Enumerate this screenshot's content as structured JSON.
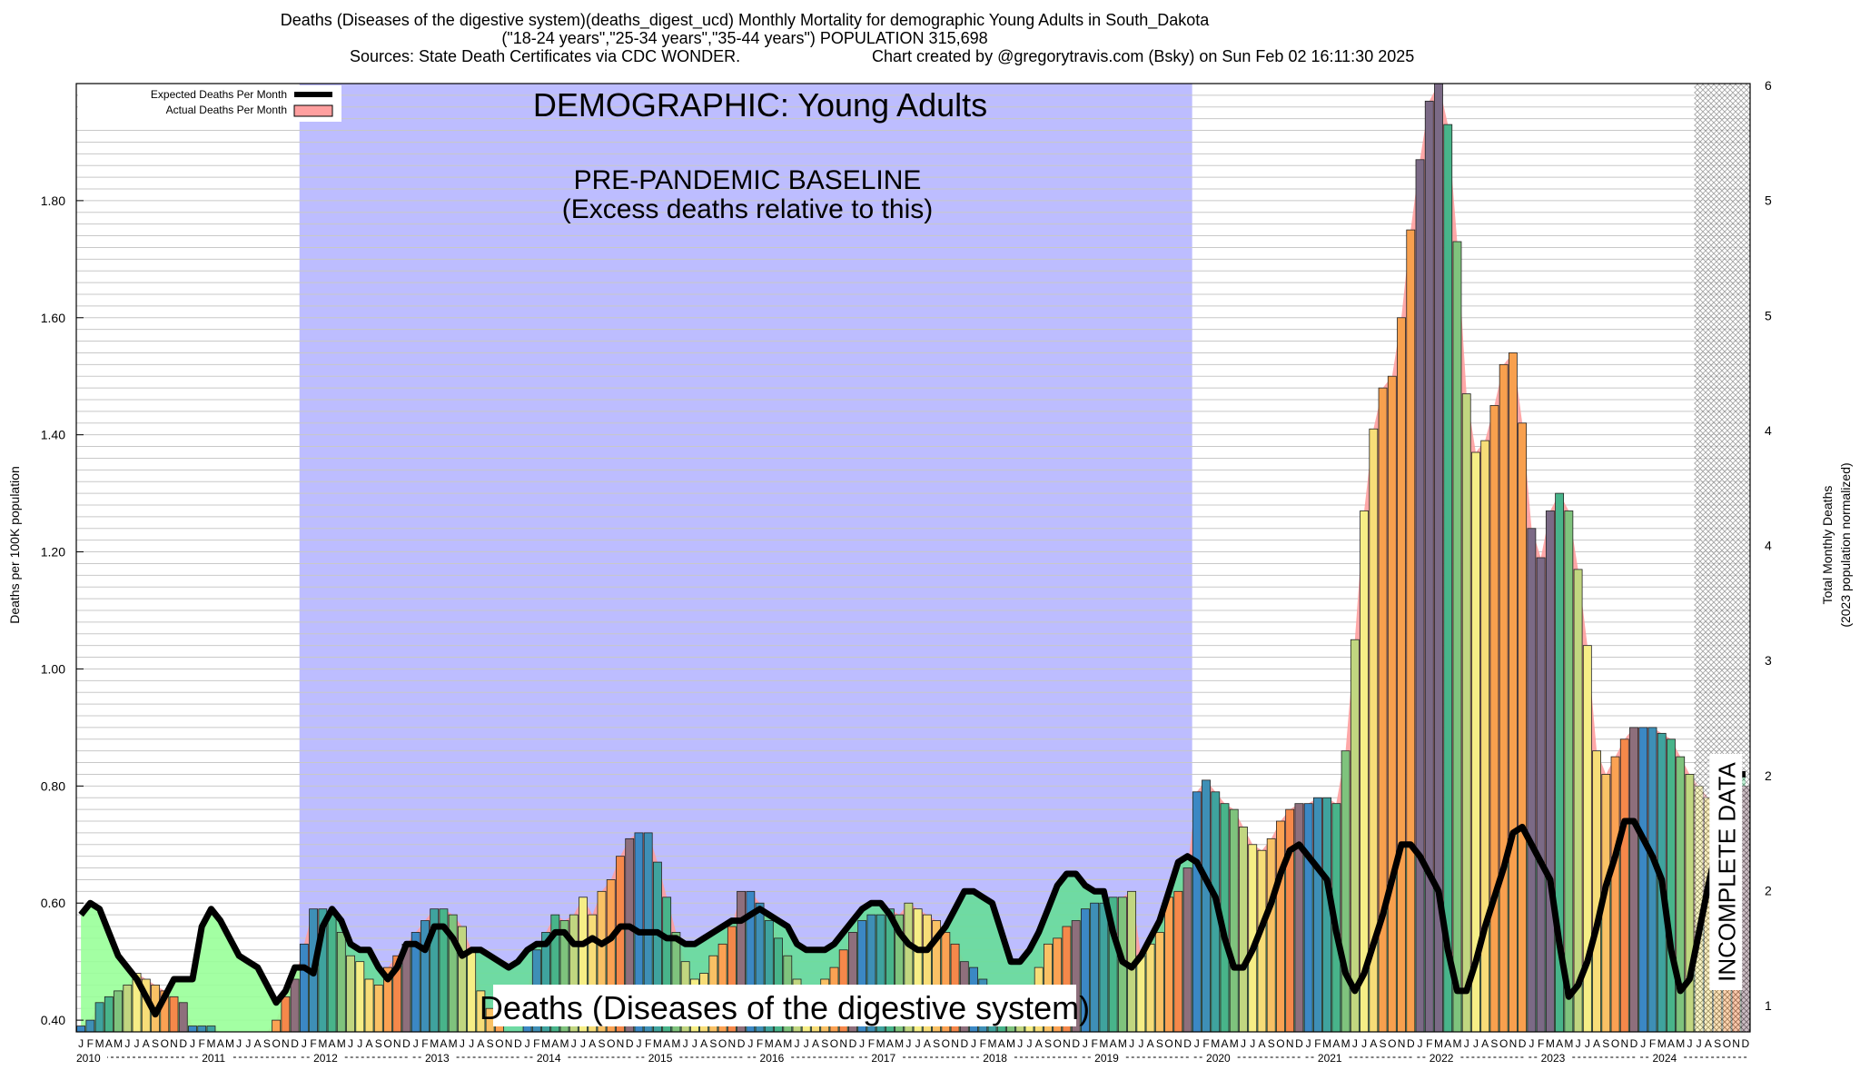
{
  "header": {
    "line1": "Deaths (Diseases of the digestive system)(deaths_digest_ucd) Monthly Mortality for demographic Young Adults in South_Dakota",
    "line2": "(\"18-24 years\",\"25-34 years\",\"35-44 years\") POPULATION 315,698",
    "line3": "Sources: State Death Certificates via CDC WONDER.",
    "line4": "Chart created by @gregorytravis.com (Bsky) on Sun Feb 02 16:11:30 2025"
  },
  "colors": {
    "baseline_band": "#bdbdff",
    "expected_fill": "#99ff99",
    "expected_fill_baseline": "#66dd99",
    "actual_fill": "#ff9f9f",
    "expected_line": "#000000",
    "bar_palette": [
      "#3b88c4",
      "#3e8fb6",
      "#3fa39e",
      "#48b48a",
      "#7fc37d",
      "#c1d680",
      "#f6ee86",
      "#f7dd78",
      "#f9c165",
      "#fba253",
      "#f5884a",
      "#8e6f7c"
    ]
  },
  "chart_data": {
    "type": "bar",
    "title": "Deaths (Diseases of the digestive system)(deaths_digest_ucd) Monthly Mortality for demographic Young Adults in South_Dakota",
    "ylabel": "Deaths per 100K population",
    "y2label": "Total Monthly Deaths",
    "y2label_note": "(2023 population normalized)",
    "ylim": [
      0.38,
      2.0
    ],
    "yticks": [
      "0.40",
      "0.60",
      "0.80",
      "1.00",
      "1.20",
      "1.40",
      "1.60",
      "1.80"
    ],
    "y2ticks": [
      "1",
      "2",
      "2",
      "3",
      "4",
      "4",
      "5",
      "5",
      "6"
    ],
    "grid": true,
    "x_start": "2010-01",
    "month_letters": [
      "J",
      "F",
      "M",
      "A",
      "M",
      "J",
      "J",
      "A",
      "S",
      "O",
      "N",
      "D"
    ],
    "years": [
      "2010",
      "2011",
      "2012",
      "2013",
      "2014",
      "2015",
      "2016",
      "2017",
      "2018",
      "2019",
      "2020",
      "2021",
      "2022",
      "2023",
      "2024"
    ],
    "legend": {
      "position": "top-left",
      "entries": [
        "Expected Deaths Per Month",
        "Actual Deaths Per Month"
      ]
    },
    "annotations": {
      "demographic": "DEMOGRAPHIC: Young Adults",
      "baseline_title": "PRE-PANDEMIC BASELINE",
      "baseline_sub": "(Excess deaths relative to this)",
      "bottom_label": "Deaths (Diseases of the digestive system)",
      "incomplete": "INCOMPLETE DATA"
    },
    "baseline_period": [
      "2012-01",
      "2019-12"
    ],
    "incomplete_period": [
      "2024-07",
      "2024-12"
    ],
    "series": [
      {
        "name": "Actual Deaths Per Month",
        "values": [
          0.39,
          0.4,
          0.43,
          0.44,
          0.45,
          0.46,
          0.48,
          0.47,
          0.46,
          0.45,
          0.44,
          0.43,
          0.39,
          0.39,
          0.39,
          0.38,
          0.36,
          0.36,
          0.36,
          0.37,
          0.38,
          0.4,
          0.44,
          0.47,
          0.53,
          0.59,
          0.59,
          0.58,
          0.55,
          0.51,
          0.5,
          0.47,
          0.46,
          0.49,
          0.51,
          0.53,
          0.55,
          0.57,
          0.59,
          0.59,
          0.58,
          0.56,
          0.52,
          0.45,
          0.42,
          0.4,
          0.36,
          0.36,
          0.45,
          0.52,
          0.55,
          0.58,
          0.57,
          0.58,
          0.61,
          0.58,
          0.62,
          0.64,
          0.68,
          0.71,
          0.72,
          0.72,
          0.67,
          0.61,
          0.55,
          0.5,
          0.47,
          0.48,
          0.51,
          0.53,
          0.56,
          0.62,
          0.62,
          0.6,
          0.57,
          0.54,
          0.51,
          0.47,
          0.44,
          0.45,
          0.47,
          0.49,
          0.52,
          0.55,
          0.57,
          0.58,
          0.58,
          0.59,
          0.58,
          0.6,
          0.59,
          0.58,
          0.57,
          0.55,
          0.53,
          0.5,
          0.49,
          0.47,
          0.45,
          0.44,
          0.44,
          0.44,
          0.46,
          0.49,
          0.53,
          0.54,
          0.56,
          0.57,
          0.59,
          0.6,
          0.6,
          0.61,
          0.61,
          0.62,
          0.51,
          0.53,
          0.55,
          0.61,
          0.62,
          0.66,
          0.79,
          0.81,
          0.79,
          0.77,
          0.76,
          0.73,
          0.7,
          0.69,
          0.71,
          0.74,
          0.76,
          0.77,
          0.77,
          0.78,
          0.78,
          0.77,
          0.86,
          1.05,
          1.27,
          1.41,
          1.48,
          1.5,
          1.6,
          1.75,
          1.87,
          1.97,
          2.0,
          1.93,
          1.73,
          1.47,
          1.37,
          1.39,
          1.45,
          1.52,
          1.54,
          1.42,
          1.24,
          1.19,
          1.27,
          1.3,
          1.27,
          1.17,
          1.04,
          0.86,
          0.82,
          0.85,
          0.88,
          0.9,
          0.9,
          0.9,
          0.89,
          0.88,
          0.85,
          0.82,
          0.8,
          0.78,
          0.75,
          0.73,
          0.78,
          0.8
        ]
      },
      {
        "name": "Expected Deaths Per Month",
        "values": [
          0.58,
          0.6,
          0.59,
          0.55,
          0.51,
          0.49,
          0.47,
          0.44,
          0.41,
          0.44,
          0.47,
          0.47,
          0.47,
          0.56,
          0.59,
          0.57,
          0.54,
          0.51,
          0.5,
          0.49,
          0.46,
          0.43,
          0.45,
          0.49,
          0.49,
          0.48,
          0.56,
          0.59,
          0.57,
          0.53,
          0.52,
          0.52,
          0.49,
          0.47,
          0.49,
          0.53,
          0.53,
          0.52,
          0.56,
          0.56,
          0.54,
          0.51,
          0.52,
          0.52,
          0.51,
          0.5,
          0.49,
          0.5,
          0.52,
          0.53,
          0.53,
          0.55,
          0.55,
          0.53,
          0.53,
          0.54,
          0.53,
          0.54,
          0.56,
          0.56,
          0.55,
          0.55,
          0.55,
          0.54,
          0.54,
          0.53,
          0.53,
          0.54,
          0.55,
          0.56,
          0.57,
          0.57,
          0.58,
          0.59,
          0.58,
          0.57,
          0.56,
          0.53,
          0.52,
          0.52,
          0.52,
          0.53,
          0.55,
          0.57,
          0.59,
          0.6,
          0.6,
          0.58,
          0.55,
          0.53,
          0.52,
          0.52,
          0.54,
          0.56,
          0.59,
          0.62,
          0.62,
          0.61,
          0.6,
          0.55,
          0.5,
          0.5,
          0.52,
          0.55,
          0.59,
          0.63,
          0.65,
          0.65,
          0.63,
          0.62,
          0.62,
          0.55,
          0.5,
          0.49,
          0.51,
          0.54,
          0.57,
          0.62,
          0.67,
          0.68,
          0.67,
          0.64,
          0.61,
          0.54,
          0.49,
          0.49,
          0.52,
          0.56,
          0.6,
          0.65,
          0.69,
          0.7,
          0.68,
          0.66,
          0.64,
          0.55,
          0.48,
          0.45,
          0.48,
          0.53,
          0.58,
          0.64,
          0.7,
          0.7,
          0.68,
          0.65,
          0.62,
          0.52,
          0.45,
          0.45,
          0.5,
          0.56,
          0.61,
          0.66,
          0.72,
          0.73,
          0.7,
          0.67,
          0.64,
          0.53,
          0.44,
          0.46,
          0.5,
          0.56,
          0.63,
          0.68,
          0.74,
          0.74,
          0.71,
          0.68,
          0.64,
          0.52,
          0.45,
          0.47,
          0.55,
          0.63,
          0.7,
          0.76,
          0.82,
          0.82
        ]
      }
    ]
  }
}
